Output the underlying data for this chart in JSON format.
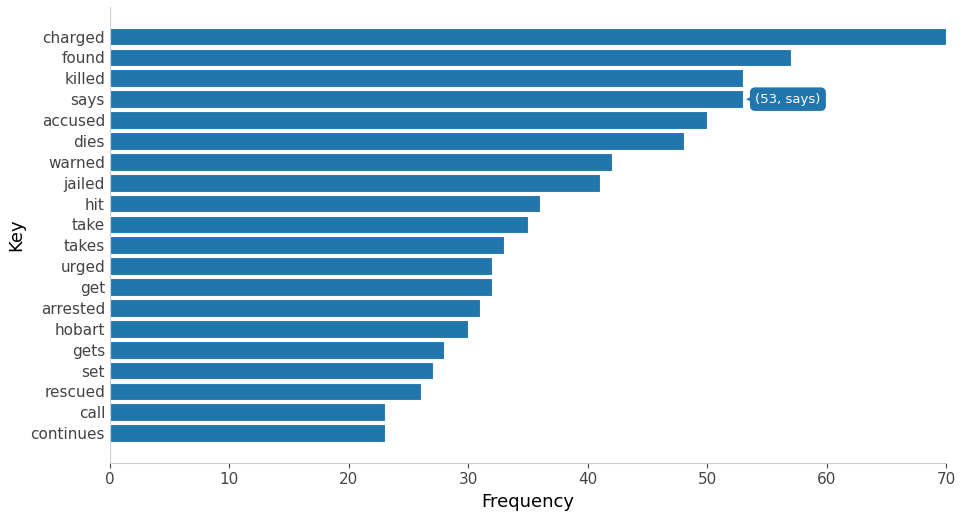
{
  "categories": [
    "charged",
    "found",
    "killed",
    "says",
    "accused",
    "dies",
    "warned",
    "jailed",
    "hit",
    "take",
    "takes",
    "urged",
    "get",
    "arrested",
    "hobart",
    "gets",
    "set",
    "rescued",
    "call",
    "continues"
  ],
  "values": [
    70,
    57,
    53,
    53,
    50,
    48,
    42,
    41,
    36,
    35,
    33,
    32,
    32,
    31,
    30,
    28,
    27,
    26,
    23,
    23
  ],
  "bar_color": "#2176ae",
  "xlabel": "Frequency",
  "ylabel": "Key",
  "xlim": [
    0,
    70
  ],
  "annotation_text": "(53, says)",
  "annotation_bar": "says",
  "annotation_value": 53,
  "annotation_color": "#2176ae",
  "annotation_text_color": "#ffffff",
  "background_color": "#ffffff",
  "tick_fontsize": 11,
  "label_fontsize": 13,
  "bar_height": 0.85,
  "xticks": [
    0,
    10,
    20,
    30,
    40,
    50,
    60,
    70
  ]
}
